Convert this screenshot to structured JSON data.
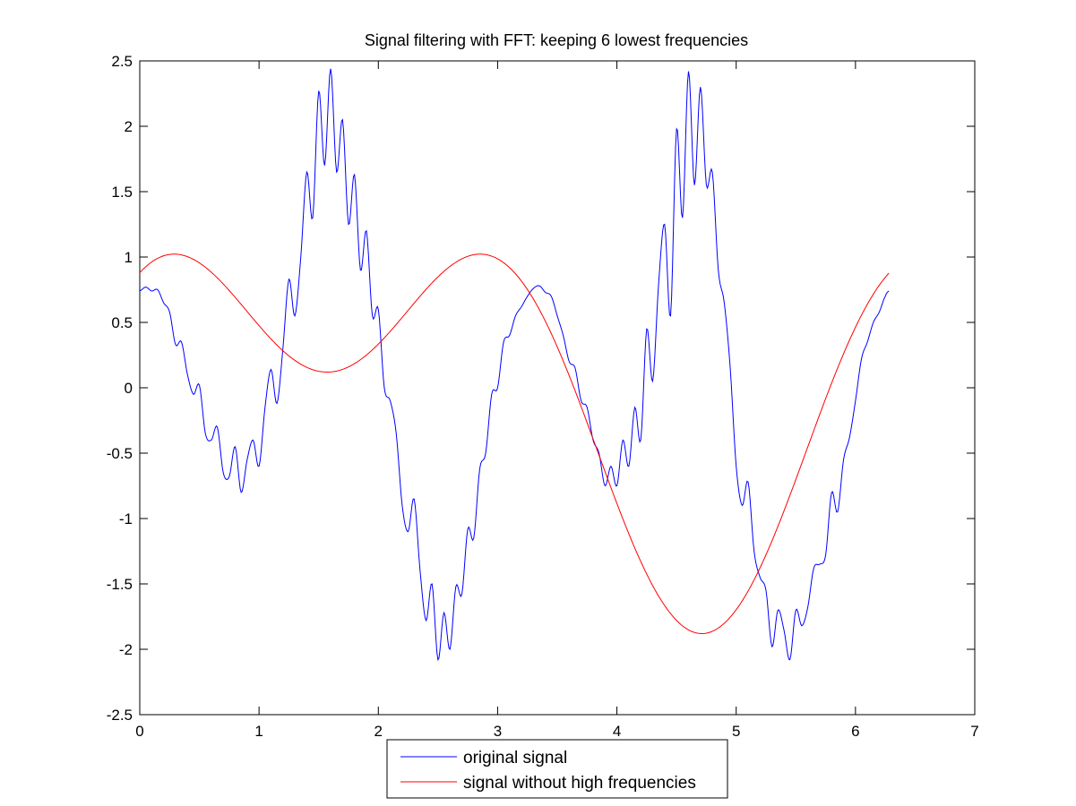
{
  "chart_data": {
    "type": "line",
    "title": "Signal filtering with FFT: keeping 6 lowest frequencies",
    "xlabel": "",
    "ylabel": "",
    "xlim": [
      0,
      7
    ],
    "ylim": [
      -2.5,
      2.5
    ],
    "x_ticks": [
      "0",
      "1",
      "2",
      "3",
      "4",
      "5",
      "6",
      "7"
    ],
    "y_ticks": [
      "-2.5",
      "-2",
      "-1.5",
      "-1",
      "-0.5",
      "0",
      "0.5",
      "1",
      "1.5",
      "2",
      "2.5"
    ],
    "grid": false,
    "legend_position": "bottom-center-outside",
    "series": [
      {
        "name": "original signal",
        "color": "#0000ff",
        "x": [
          0.0,
          0.05,
          0.1,
          0.15,
          0.2,
          0.25,
          0.3,
          0.35,
          0.4,
          0.45,
          0.5,
          0.55,
          0.6,
          0.65,
          0.7,
          0.75,
          0.8,
          0.85,
          0.9,
          0.95,
          1.0,
          1.05,
          1.1,
          1.15,
          1.2,
          1.25,
          1.3,
          1.35,
          1.4,
          1.45,
          1.5,
          1.55,
          1.6,
          1.65,
          1.7,
          1.75,
          1.8,
          1.85,
          1.9,
          1.95,
          2.0,
          2.05,
          2.1,
          2.15,
          2.2,
          2.25,
          2.3,
          2.35,
          2.4,
          2.45,
          2.5,
          2.55,
          2.6,
          2.65,
          2.7,
          2.75,
          2.8,
          2.85,
          2.9,
          2.95,
          3.0,
          3.05,
          3.1,
          3.15,
          3.2,
          3.25,
          3.3,
          3.35,
          3.4,
          3.45,
          3.5,
          3.55,
          3.6,
          3.65,
          3.7,
          3.75,
          3.8,
          3.85,
          3.9,
          3.95,
          4.0,
          4.05,
          4.1,
          4.15,
          4.2,
          4.25,
          4.3,
          4.35,
          4.4,
          4.45,
          4.5,
          4.55,
          4.6,
          4.65,
          4.7,
          4.75,
          4.8,
          4.85,
          4.9,
          4.95,
          5.0,
          5.05,
          5.1,
          5.15,
          5.2,
          5.25,
          5.3,
          5.35,
          5.4,
          5.45,
          5.5,
          5.55,
          5.6,
          5.65,
          5.7,
          5.75,
          5.8,
          5.85,
          5.9,
          5.95,
          6.0,
          6.05,
          6.1,
          6.15,
          6.2,
          6.25,
          6.28
        ],
        "y": [
          0.74,
          0.77,
          0.74,
          0.75,
          0.65,
          0.58,
          0.33,
          0.35,
          0.1,
          -0.05,
          0.02,
          -0.35,
          -0.4,
          -0.3,
          -0.65,
          -0.68,
          -0.45,
          -0.8,
          -0.55,
          -0.4,
          -0.6,
          -0.15,
          0.14,
          -0.12,
          0.3,
          0.83,
          0.55,
          1.0,
          1.65,
          1.3,
          2.27,
          1.7,
          2.44,
          1.65,
          2.05,
          1.25,
          1.63,
          0.9,
          1.2,
          0.55,
          0.6,
          0.0,
          -0.1,
          -0.35,
          -0.9,
          -1.1,
          -0.85,
          -1.4,
          -1.78,
          -1.5,
          -2.08,
          -1.72,
          -2.0,
          -1.52,
          -1.58,
          -1.08,
          -1.15,
          -0.62,
          -0.5,
          -0.05,
          0.0,
          0.35,
          0.4,
          0.55,
          0.62,
          0.7,
          0.76,
          0.78,
          0.73,
          0.7,
          0.55,
          0.4,
          0.2,
          0.15,
          -0.1,
          -0.15,
          -0.4,
          -0.5,
          -0.75,
          -0.6,
          -0.75,
          -0.4,
          -0.6,
          -0.15,
          -0.4,
          0.45,
          0.05,
          0.8,
          1.25,
          0.55,
          1.98,
          1.3,
          2.42,
          1.55,
          2.3,
          1.55,
          1.65,
          0.9,
          0.65,
          0.15,
          -0.6,
          -0.9,
          -0.72,
          -1.25,
          -1.45,
          -1.55,
          -1.98,
          -1.7,
          -1.85,
          -2.08,
          -1.7,
          -1.82,
          -1.68,
          -1.38,
          -1.35,
          -1.28,
          -0.8,
          -0.95,
          -0.55,
          -0.38,
          -0.1,
          0.22,
          0.35,
          0.5,
          0.58,
          0.7,
          0.74
        ]
      },
      {
        "name": "signal without high frequencies",
        "color": "#ff0000"
      }
    ]
  }
}
